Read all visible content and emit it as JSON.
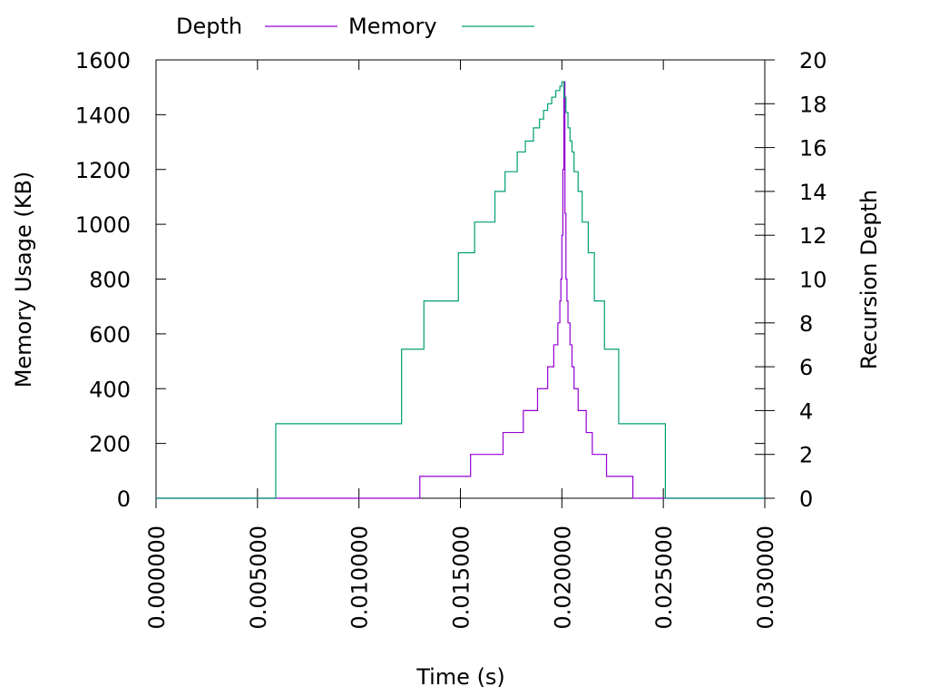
{
  "chart_data": {
    "type": "line",
    "title": "",
    "xlabel": "Time (s)",
    "ylabel": "Memory Usage (KB)",
    "y2label": "Recursion Depth",
    "xlim": [
      0,
      0.03
    ],
    "ylim": [
      0,
      1600
    ],
    "y2lim": [
      0,
      20
    ],
    "grid": false,
    "legend_position": "top",
    "x_ticks": [
      {
        "value": 0,
        "label": "0.000000"
      },
      {
        "value": 0.005,
        "label": "0.005000"
      },
      {
        "value": 0.01,
        "label": "0.010000"
      },
      {
        "value": 0.015,
        "label": "0.015000"
      },
      {
        "value": 0.02,
        "label": "0.020000"
      },
      {
        "value": 0.025,
        "label": "0.025000"
      },
      {
        "value": 0.03,
        "label": "0.030000"
      }
    ],
    "y_ticks": [
      {
        "value": 0,
        "label": "0"
      },
      {
        "value": 200,
        "label": "200"
      },
      {
        "value": 400,
        "label": "400"
      },
      {
        "value": 600,
        "label": "600"
      },
      {
        "value": 800,
        "label": "800"
      },
      {
        "value": 1000,
        "label": "1000"
      },
      {
        "value": 1200,
        "label": "1200"
      },
      {
        "value": 1400,
        "label": "1400"
      },
      {
        "value": 1600,
        "label": "1600"
      }
    ],
    "y2_ticks": [
      {
        "value": 0,
        "label": "0"
      },
      {
        "value": 2,
        "label": "2"
      },
      {
        "value": 4,
        "label": "4"
      },
      {
        "value": 6,
        "label": "6"
      },
      {
        "value": 8,
        "label": "8"
      },
      {
        "value": 10,
        "label": "10"
      },
      {
        "value": 12,
        "label": "12"
      },
      {
        "value": 14,
        "label": "14"
      },
      {
        "value": 16,
        "label": "16"
      },
      {
        "value": 18,
        "label": "18"
      },
      {
        "value": 20,
        "label": "20"
      }
    ],
    "series": [
      {
        "name": "Depth",
        "axis": "y2",
        "color": "#9400d3",
        "step": true,
        "x": [
          0,
          0.013,
          0.0155,
          0.0171,
          0.0181,
          0.0188,
          0.0193,
          0.0196,
          0.0198,
          0.0199,
          0.01995,
          0.02,
          0.02005,
          0.0201,
          0.02015,
          0.0202,
          0.02025,
          0.0203,
          0.0204,
          0.0205,
          0.0206,
          0.0208,
          0.0212,
          0.0215,
          0.0222,
          0.0235,
          0.03
        ],
        "values": [
          0,
          1,
          2,
          3,
          4,
          5,
          6,
          7,
          8,
          9,
          10,
          12,
          15,
          19,
          13,
          10,
          9,
          8,
          7,
          6,
          5,
          4,
          3,
          2,
          1,
          0,
          0
        ]
      },
      {
        "name": "Memory",
        "axis": "y",
        "color": "#009e73",
        "step": true,
        "x": [
          0,
          0.0059,
          0.0121,
          0.0132,
          0.0149,
          0.0157,
          0.0167,
          0.0172,
          0.0178,
          0.0182,
          0.0186,
          0.0189,
          0.0191,
          0.0193,
          0.0195,
          0.0197,
          0.0199,
          0.02,
          0.0201,
          0.0202,
          0.0203,
          0.0204,
          0.0205,
          0.0206,
          0.0208,
          0.021,
          0.0213,
          0.0216,
          0.0221,
          0.0228,
          0.0235,
          0.0251,
          0.03
        ],
        "values": [
          0,
          272,
          544,
          720,
          896,
          1008,
          1120,
          1192,
          1264,
          1304,
          1352,
          1384,
          1416,
          1440,
          1464,
          1488,
          1504,
          1520,
          1464,
          1408,
          1352,
          1304,
          1264,
          1192,
          1120,
          1008,
          896,
          720,
          544,
          272,
          272,
          0,
          0
        ]
      }
    ]
  }
}
